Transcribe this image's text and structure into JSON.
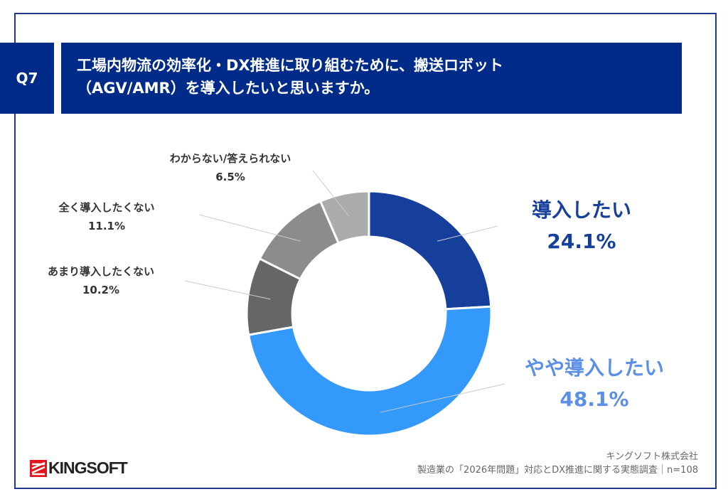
{
  "question": {
    "number": "Q7",
    "title_line1": "工場内物流の効率化・DX推進に取り組むために、搬送ロボット",
    "title_line2": "（AGV/AMR）を導入したいと思いますか。"
  },
  "chart_data": {
    "type": "pie",
    "donut": true,
    "start": "top, clockwise",
    "categories": [
      "導入したい",
      "やや導入したい",
      "あまり導入したくない",
      "全く導入したくない",
      "わからない/答えられない"
    ],
    "values": [
      24.1,
      48.1,
      10.2,
      11.1,
      6.5
    ],
    "labels": [
      "24.1%",
      "48.1%",
      "10.2%",
      "11.1%",
      "6.5%"
    ],
    "colors": [
      "#163f9c",
      "#3399fa",
      "#666666",
      "#8c8c8c",
      "#ababab"
    ],
    "label_colors": [
      "#163f9c",
      "#5b8fe8",
      "#333333",
      "#333333",
      "#333333"
    ]
  },
  "footer": {
    "company": "キングソフト株式会社",
    "survey": "製造業の「2026年問題」対応とDX推進に関する実態調査｜n=108"
  },
  "logo": {
    "text": "KINGSOFT",
    "color": "#e0161c"
  }
}
